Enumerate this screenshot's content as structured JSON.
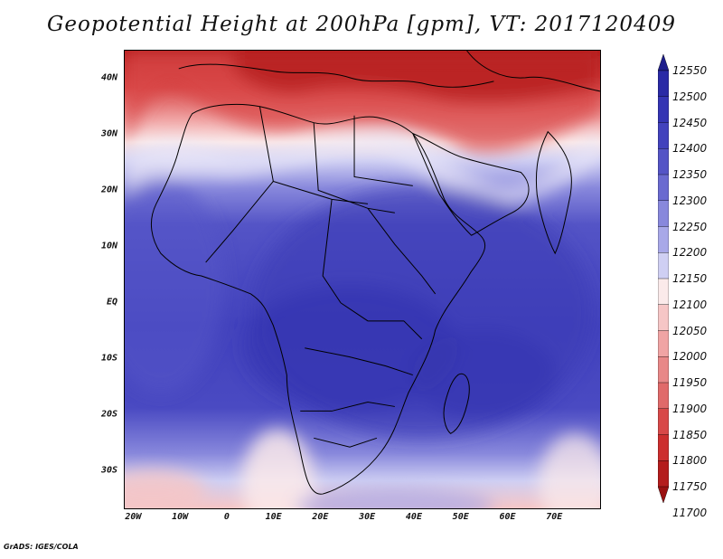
{
  "title": "Geopotential Height at 200hPa [gpm], VT: 2017120409",
  "credit": "GrADS: IGES/COLA",
  "map": {
    "lat_labels": [
      "40N",
      "30N",
      "20N",
      "10N",
      "EQ",
      "10S",
      "20S",
      "30S"
    ],
    "lat_values": [
      40,
      30,
      20,
      10,
      0,
      -10,
      -20,
      -30
    ],
    "lon_labels": [
      "20W",
      "10W",
      "0",
      "10E",
      "20E",
      "30E",
      "40E",
      "50E",
      "60E",
      "70E"
    ],
    "lon_values": [
      -20,
      -10,
      0,
      10,
      20,
      30,
      40,
      50,
      60,
      70
    ],
    "lon_range": [
      -22,
      80
    ],
    "lat_range": [
      -37,
      45
    ]
  },
  "colorbar": {
    "labels": [
      "12550",
      "12500",
      "12450",
      "12400",
      "12350",
      "12300",
      "12250",
      "12200",
      "12150",
      "12100",
      "12050",
      "12000",
      "11950",
      "11900",
      "11850",
      "11800",
      "11750",
      "11700"
    ],
    "colors_top_to_bottom": [
      "#1e1e8c",
      "#2a2aa6",
      "#3535b4",
      "#4242bd",
      "#5454c6",
      "#6a6ad0",
      "#8888dc",
      "#a8a8e8",
      "#cfcff3",
      "#fbeaea",
      "#f6c6c6",
      "#f0a4a4",
      "#e88888",
      "#e06a6a",
      "#d84848",
      "#cc2e2e",
      "#b41c1c",
      "#9a1010"
    ]
  }
}
